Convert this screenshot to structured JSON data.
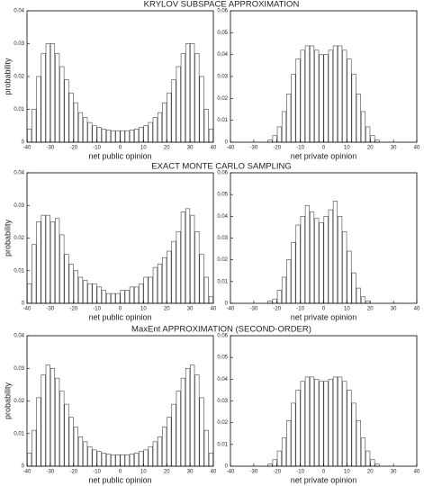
{
  "chart_data": [
    {
      "type": "histogram",
      "title": "KRYLOV SUBSPACE APPROXIMATION",
      "xlabel": "net public opinion",
      "ylabel": "probability",
      "bins": [
        -40,
        -38,
        -36,
        -34,
        -32,
        -30,
        -28,
        -26,
        -24,
        -22,
        -20,
        -18,
        -16,
        -14,
        -12,
        -10,
        -8,
        -6,
        -4,
        -2,
        0,
        2,
        4,
        6,
        8,
        10,
        12,
        14,
        16,
        18,
        20,
        22,
        24,
        26,
        28,
        30,
        32,
        34,
        36,
        38,
        40
      ],
      "values": [
        0.004,
        0.01,
        0.02,
        0.027,
        0.03,
        0.03,
        0.027,
        0.023,
        0.019,
        0.015,
        0.012,
        0.009,
        0.0075,
        0.006,
        0.005,
        0.0045,
        0.004,
        0.0037,
        0.0035,
        0.0035,
        0.0035,
        0.0035,
        0.0037,
        0.004,
        0.0045,
        0.005,
        0.006,
        0.0075,
        0.009,
        0.012,
        0.015,
        0.019,
        0.023,
        0.027,
        0.03,
        0.03,
        0.027,
        0.02,
        0.01,
        0.004
      ],
      "xlim": [
        -40,
        40
      ],
      "ylim": [
        0,
        0.04
      ],
      "xticks": [
        -40,
        -30,
        -20,
        -10,
        0,
        10,
        20,
        30,
        40
      ],
      "yticks": [
        0,
        0.01,
        0.02,
        0.03,
        0.04
      ]
    },
    {
      "type": "histogram",
      "xlabel": "net private opinion",
      "bins": [
        -40,
        -38,
        -36,
        -34,
        -32,
        -30,
        -28,
        -26,
        -24,
        -22,
        -20,
        -18,
        -16,
        -14,
        -12,
        -10,
        -8,
        -6,
        -4,
        -2,
        0,
        2,
        4,
        6,
        8,
        10,
        12,
        14,
        16,
        18,
        20,
        22,
        24,
        26,
        28,
        30,
        32,
        34,
        36,
        38,
        40
      ],
      "values": [
        0,
        0,
        0,
        0,
        0,
        0,
        0,
        0,
        0.001,
        0.003,
        0.007,
        0.014,
        0.022,
        0.031,
        0.038,
        0.042,
        0.044,
        0.044,
        0.042,
        0.04,
        0.04,
        0.042,
        0.044,
        0.044,
        0.042,
        0.038,
        0.031,
        0.022,
        0.014,
        0.007,
        0.003,
        0.001,
        0,
        0,
        0,
        0,
        0,
        0,
        0,
        0
      ],
      "xlim": [
        -40,
        40
      ],
      "ylim": [
        0,
        0.06
      ],
      "xticks": [
        -40,
        -30,
        -20,
        -10,
        0,
        10,
        20,
        30,
        40
      ],
      "yticks": [
        0,
        0.01,
        0.02,
        0.03,
        0.04,
        0.05,
        0.06
      ]
    },
    {
      "type": "histogram",
      "title": "EXACT MONTE CARLO SAMPLING",
      "xlabel": "net public opinion",
      "ylabel": "probability",
      "bins": [
        -40,
        -38,
        -36,
        -34,
        -32,
        -30,
        -28,
        -26,
        -24,
        -22,
        -20,
        -18,
        -16,
        -14,
        -12,
        -10,
        -8,
        -6,
        -4,
        -2,
        0,
        2,
        4,
        6,
        8,
        10,
        12,
        14,
        16,
        18,
        20,
        22,
        24,
        26,
        28,
        30,
        32,
        34,
        36,
        38,
        40
      ],
      "values": [
        0.006,
        0.018,
        0.025,
        0.027,
        0.027,
        0.025,
        0.026,
        0.021,
        0.015,
        0.012,
        0.01,
        0.008,
        0.007,
        0.006,
        0.006,
        0.005,
        0.004,
        0.003,
        0.003,
        0.003,
        0.004,
        0.004,
        0.005,
        0.005,
        0.006,
        0.008,
        0.008,
        0.011,
        0.012,
        0.014,
        0.016,
        0.019,
        0.022,
        0.028,
        0.029,
        0.027,
        0.022,
        0.015,
        0.008,
        0.002
      ],
      "xlim": [
        -40,
        40
      ],
      "ylim": [
        0,
        0.04
      ],
      "xticks": [
        -40,
        -30,
        -20,
        -10,
        0,
        10,
        20,
        30,
        40
      ],
      "yticks": [
        0,
        0.01,
        0.02,
        0.03,
        0.04
      ]
    },
    {
      "type": "histogram",
      "xlabel": "net private opinion",
      "bins": [
        -40,
        -38,
        -36,
        -34,
        -32,
        -30,
        -28,
        -26,
        -24,
        -22,
        -20,
        -18,
        -16,
        -14,
        -12,
        -10,
        -8,
        -6,
        -4,
        -2,
        0,
        2,
        4,
        6,
        8,
        10,
        12,
        14,
        16,
        18,
        20,
        22,
        24,
        26,
        28,
        30,
        32,
        34,
        36,
        38,
        40
      ],
      "values": [
        0,
        0,
        0,
        0,
        0,
        0,
        0,
        0,
        0.001,
        0.002,
        0.006,
        0.012,
        0.02,
        0.028,
        0.036,
        0.04,
        0.045,
        0.042,
        0.039,
        0.037,
        0.04,
        0.043,
        0.047,
        0.04,
        0.033,
        0.024,
        0.014,
        0.007,
        0.003,
        0.001,
        0,
        0,
        0,
        0,
        0,
        0,
        0,
        0,
        0,
        0
      ],
      "xlim": [
        -40,
        40
      ],
      "ylim": [
        0,
        0.06
      ],
      "xticks": [
        -40,
        -30,
        -20,
        -10,
        0,
        10,
        20,
        30,
        40
      ],
      "yticks": [
        0,
        0.01,
        0.02,
        0.03,
        0.04,
        0.05,
        0.06
      ]
    },
    {
      "type": "histogram",
      "title": "MaxEnt APPROXIMATION (SECOND-ORDER)",
      "xlabel": "net public opinion",
      "ylabel": "probability",
      "bins": [
        -40,
        -38,
        -36,
        -34,
        -32,
        -30,
        -28,
        -26,
        -24,
        -22,
        -20,
        -18,
        -16,
        -14,
        -12,
        -10,
        -8,
        -6,
        -4,
        -2,
        0,
        2,
        4,
        6,
        8,
        10,
        12,
        14,
        16,
        18,
        20,
        22,
        24,
        26,
        28,
        30,
        32,
        34,
        36,
        38,
        40
      ],
      "values": [
        0.004,
        0.011,
        0.021,
        0.028,
        0.031,
        0.03,
        0.027,
        0.023,
        0.019,
        0.015,
        0.012,
        0.009,
        0.0075,
        0.006,
        0.005,
        0.0045,
        0.004,
        0.0037,
        0.0035,
        0.0035,
        0.0035,
        0.0035,
        0.0037,
        0.004,
        0.0045,
        0.005,
        0.006,
        0.0075,
        0.009,
        0.012,
        0.015,
        0.019,
        0.023,
        0.027,
        0.03,
        0.031,
        0.028,
        0.021,
        0.011,
        0.004
      ],
      "xlim": [
        -40,
        40
      ],
      "ylim": [
        0,
        0.04
      ],
      "xticks": [
        -40,
        -30,
        -20,
        -10,
        0,
        10,
        20,
        30,
        40
      ],
      "yticks": [
        0,
        0.01,
        0.02,
        0.03,
        0.04
      ]
    },
    {
      "type": "histogram",
      "xlabel": "net private opinion",
      "bins": [
        -40,
        -38,
        -36,
        -34,
        -32,
        -30,
        -28,
        -26,
        -24,
        -22,
        -20,
        -18,
        -16,
        -14,
        -12,
        -10,
        -8,
        -6,
        -4,
        -2,
        0,
        2,
        4,
        6,
        8,
        10,
        12,
        14,
        16,
        18,
        20,
        22,
        24,
        26,
        28,
        30,
        32,
        34,
        36,
        38,
        40
      ],
      "values": [
        0,
        0,
        0,
        0,
        0,
        0,
        0,
        0,
        0.001,
        0.003,
        0.007,
        0.013,
        0.021,
        0.029,
        0.035,
        0.039,
        0.041,
        0.041,
        0.04,
        0.039,
        0.039,
        0.04,
        0.041,
        0.041,
        0.039,
        0.035,
        0.029,
        0.021,
        0.013,
        0.007,
        0.003,
        0.001,
        0,
        0,
        0,
        0,
        0,
        0,
        0,
        0
      ],
      "xlim": [
        -40,
        40
      ],
      "ylim": [
        0,
        0.06
      ],
      "xticks": [
        -40,
        -30,
        -20,
        -10,
        0,
        10,
        20,
        30,
        40
      ],
      "yticks": [
        0,
        0.01,
        0.02,
        0.03,
        0.04,
        0.05,
        0.06
      ]
    }
  ]
}
